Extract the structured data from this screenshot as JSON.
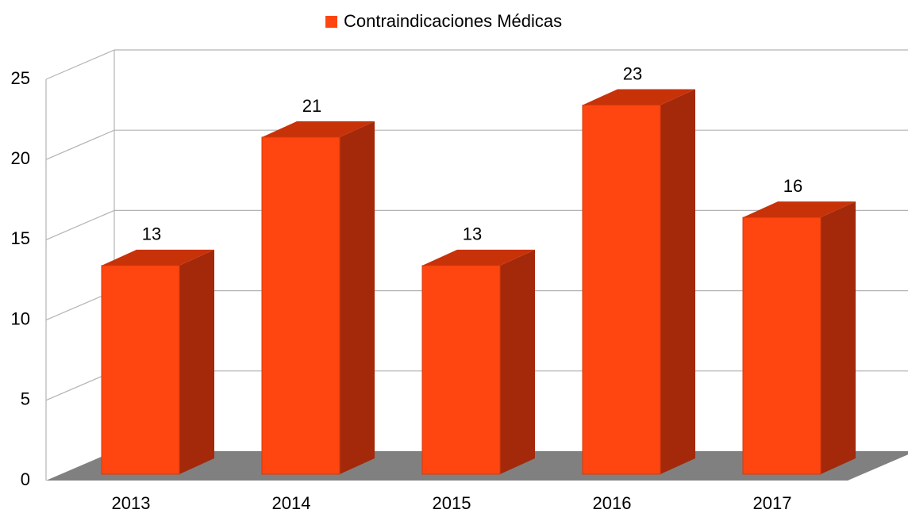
{
  "chart_data": {
    "type": "bar3d",
    "categories": [
      "2013",
      "2014",
      "2015",
      "2016",
      "2017"
    ],
    "series": [
      {
        "name": "Contraindicaciones Médicas",
        "color": "#ff4611",
        "values": [
          13,
          21,
          13,
          23,
          16
        ]
      }
    ],
    "ylim": [
      0,
      25
    ],
    "yticks": [
      0,
      5,
      10,
      15,
      20,
      25
    ],
    "grid": true,
    "legend": "top"
  }
}
